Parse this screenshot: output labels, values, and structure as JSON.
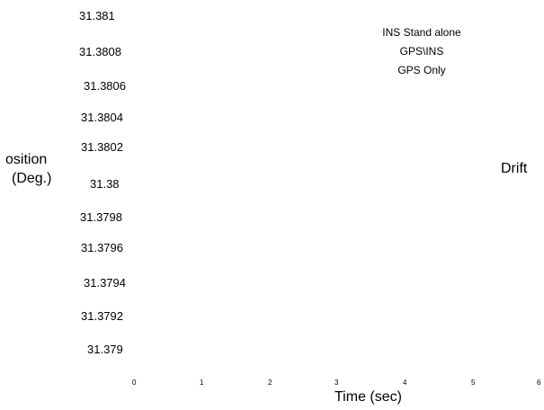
{
  "chart_data": {
    "type": "line",
    "title": "",
    "xlabel": "Time (sec)",
    "ylabel": [
      "osition",
      "(Deg.)"
    ],
    "annotation": "Drift",
    "xlim": [
      0,
      6
    ],
    "ylim": [
      31.379,
      31.381
    ],
    "x_ticks": [
      "0",
      "1",
      "2",
      "3",
      "4",
      "5",
      "6"
    ],
    "y_ticks": [
      "31.381",
      "31.3808",
      "31.3806",
      "31.3804",
      "31.3802",
      "31.38",
      "31.3798",
      "31.3796",
      "31.3794",
      "31.3792",
      "31.379"
    ],
    "legend_position": "top-right",
    "series": [
      {
        "name": "INS Stand alone",
        "values": []
      },
      {
        "name": "GPS\\INS",
        "values": []
      },
      {
        "name": "GPS Only",
        "values": []
      }
    ],
    "grid": false
  }
}
